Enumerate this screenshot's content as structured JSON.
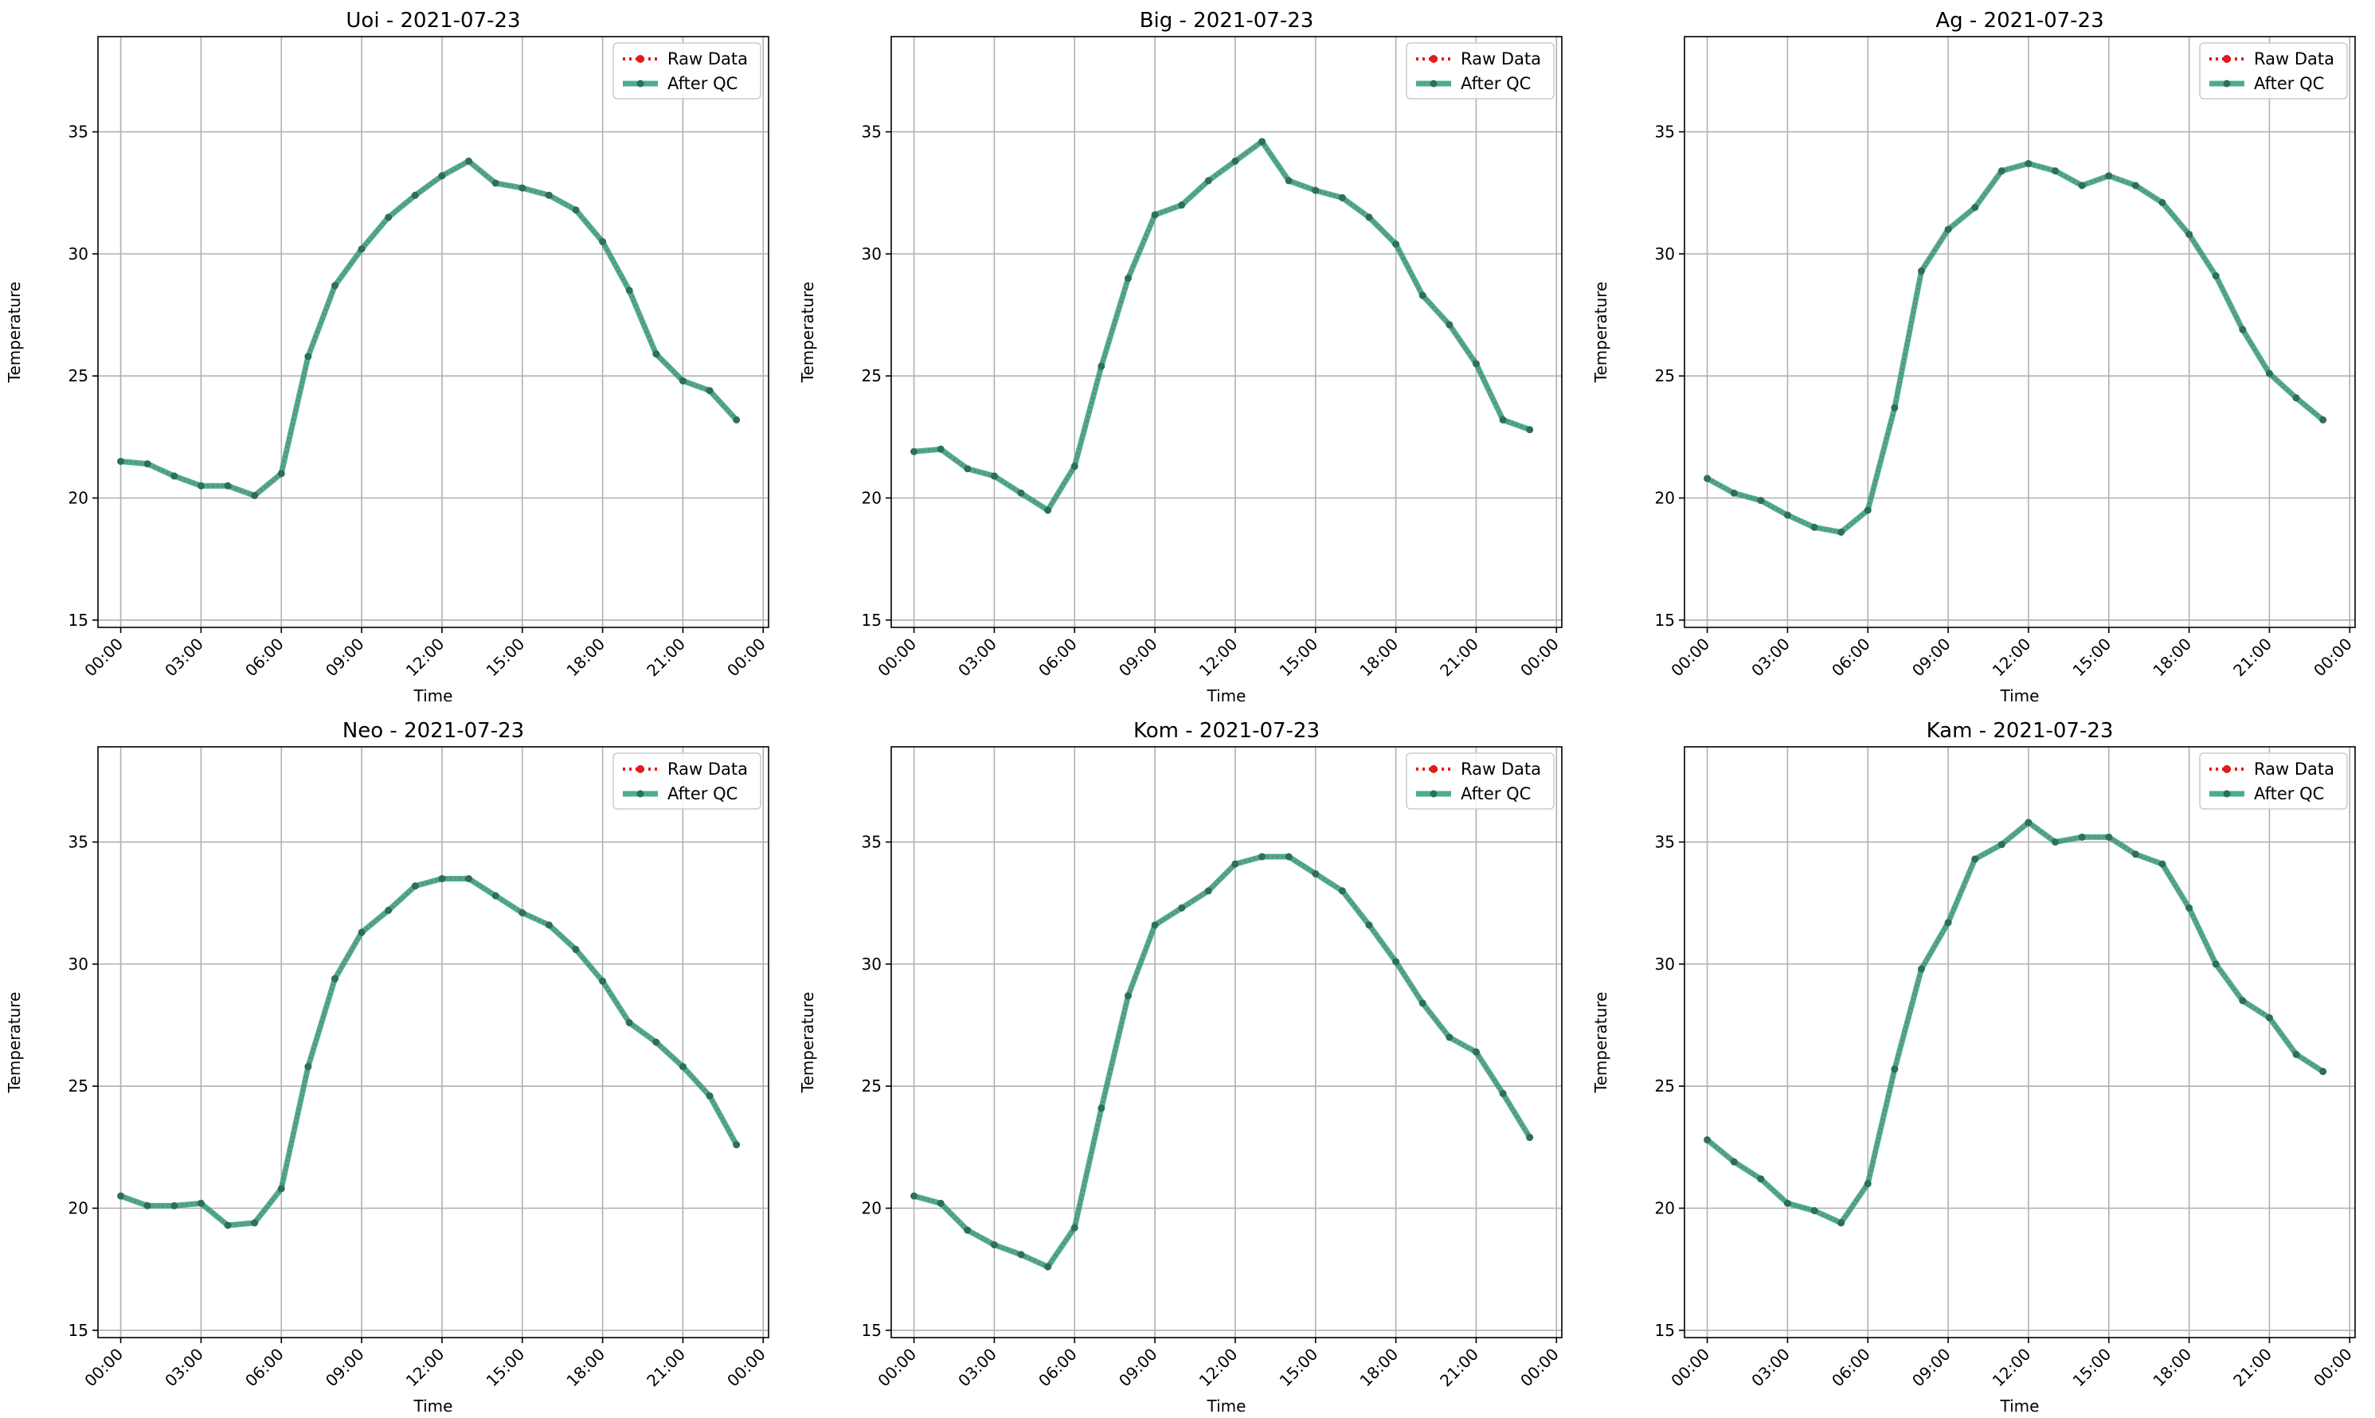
{
  "colors": {
    "raw": "#e41a1c",
    "qc": "#2a9d7f",
    "qc_marker": "#2d6e5c",
    "grid": "#b0b0b0",
    "axes": "#000000"
  },
  "chart_data": [
    {
      "type": "line",
      "title": "Uoi - 2021-07-23",
      "xlabel": "Time",
      "ylabel": "Temperature",
      "ylim": [
        14.7,
        38.9
      ],
      "xlim": [
        -0.85,
        24.2
      ],
      "x_unit": "hours",
      "x": [
        0,
        1,
        2,
        3,
        4,
        5,
        6,
        7,
        8,
        9,
        10,
        11,
        12,
        13,
        14,
        15,
        16,
        17,
        18,
        19,
        20,
        21,
        22,
        23
      ],
      "xtick_values": [
        0,
        3,
        6,
        9,
        12,
        15,
        18,
        21,
        24
      ],
      "xtick_labels": [
        "00:00",
        "03:00",
        "06:00",
        "09:00",
        "12:00",
        "15:00",
        "18:00",
        "21:00",
        "00:00"
      ],
      "ytick_values": [
        15,
        20,
        25,
        30,
        35
      ],
      "ytick_labels": [
        "15",
        "20",
        "25",
        "30",
        "35"
      ],
      "grid": true,
      "legend": "top-right",
      "series": [
        {
          "name": "Raw Data",
          "style": "dotted",
          "values": [
            21.5,
            21.4,
            20.9,
            20.5,
            20.5,
            20.1,
            21.0,
            25.8,
            28.7,
            30.2,
            31.5,
            32.4,
            33.2,
            33.8,
            32.9,
            32.7,
            32.4,
            31.8,
            30.5,
            28.5,
            25.9,
            24.8,
            24.4,
            23.2
          ]
        },
        {
          "name": "After QC",
          "style": "solid",
          "values": [
            21.5,
            21.4,
            20.9,
            20.5,
            20.5,
            20.1,
            21.0,
            25.8,
            28.7,
            30.2,
            31.5,
            32.4,
            33.2,
            33.8,
            32.9,
            32.7,
            32.4,
            31.8,
            30.5,
            28.5,
            25.9,
            24.8,
            24.4,
            23.2
          ]
        }
      ]
    },
    {
      "type": "line",
      "title": "Big - 2021-07-23",
      "xlabel": "Time",
      "ylabel": "Temperature",
      "ylim": [
        14.7,
        38.9
      ],
      "xlim": [
        -0.85,
        24.2
      ],
      "x_unit": "hours",
      "x": [
        0,
        1,
        2,
        3,
        4,
        5,
        6,
        7,
        8,
        9,
        10,
        11,
        12,
        13,
        14,
        15,
        16,
        17,
        18,
        19,
        20,
        21,
        22,
        23
      ],
      "xtick_values": [
        0,
        3,
        6,
        9,
        12,
        15,
        18,
        21,
        24
      ],
      "xtick_labels": [
        "00:00",
        "03:00",
        "06:00",
        "09:00",
        "12:00",
        "15:00",
        "18:00",
        "21:00",
        "00:00"
      ],
      "ytick_values": [
        15,
        20,
        25,
        30,
        35
      ],
      "ytick_labels": [
        "15",
        "20",
        "25",
        "30",
        "35"
      ],
      "grid": true,
      "legend": "top-right",
      "series": [
        {
          "name": "Raw Data",
          "style": "dotted",
          "values": [
            21.9,
            22.0,
            21.2,
            20.9,
            20.2,
            19.5,
            21.3,
            25.4,
            29.0,
            31.6,
            32.0,
            33.0,
            33.8,
            34.6,
            33.0,
            32.6,
            32.3,
            31.5,
            30.4,
            28.3,
            27.1,
            25.5,
            23.2,
            22.8
          ]
        },
        {
          "name": "After QC",
          "style": "solid",
          "values": [
            21.9,
            22.0,
            21.2,
            20.9,
            20.2,
            19.5,
            21.3,
            25.4,
            29.0,
            31.6,
            32.0,
            33.0,
            33.8,
            34.6,
            33.0,
            32.6,
            32.3,
            31.5,
            30.4,
            28.3,
            27.1,
            25.5,
            23.2,
            22.8
          ]
        }
      ]
    },
    {
      "type": "line",
      "title": "Ag - 2021-07-23",
      "xlabel": "Time",
      "ylabel": "Temperature",
      "ylim": [
        14.7,
        38.9
      ],
      "xlim": [
        -0.85,
        24.2
      ],
      "x_unit": "hours",
      "x": [
        0,
        1,
        2,
        3,
        4,
        5,
        6,
        7,
        8,
        9,
        10,
        11,
        12,
        13,
        14,
        15,
        16,
        17,
        18,
        19,
        20,
        21,
        22,
        23
      ],
      "xtick_values": [
        0,
        3,
        6,
        9,
        12,
        15,
        18,
        21,
        24
      ],
      "xtick_labels": [
        "00:00",
        "03:00",
        "06:00",
        "09:00",
        "12:00",
        "15:00",
        "18:00",
        "21:00",
        "00:00"
      ],
      "ytick_values": [
        15,
        20,
        25,
        30,
        35
      ],
      "ytick_labels": [
        "15",
        "20",
        "25",
        "30",
        "35"
      ],
      "grid": true,
      "legend": "top-right",
      "series": [
        {
          "name": "Raw Data",
          "style": "dotted",
          "values": [
            20.8,
            20.2,
            19.9,
            19.3,
            18.8,
            18.6,
            19.5,
            23.7,
            29.3,
            31.0,
            31.9,
            33.4,
            33.7,
            33.4,
            32.8,
            33.2,
            32.8,
            32.1,
            30.8,
            29.1,
            26.9,
            25.1,
            24.1,
            23.2
          ]
        },
        {
          "name": "After QC",
          "style": "solid",
          "values": [
            20.8,
            20.2,
            19.9,
            19.3,
            18.8,
            18.6,
            19.5,
            23.7,
            29.3,
            31.0,
            31.9,
            33.4,
            33.7,
            33.4,
            32.8,
            33.2,
            32.8,
            32.1,
            30.8,
            29.1,
            26.9,
            25.1,
            24.1,
            23.2
          ]
        }
      ]
    },
    {
      "type": "line",
      "title": "Neo - 2021-07-23",
      "xlabel": "Time",
      "ylabel": "Temperature",
      "ylim": [
        14.7,
        38.9
      ],
      "xlim": [
        -0.85,
        24.2
      ],
      "x_unit": "hours",
      "x": [
        0,
        1,
        2,
        3,
        4,
        5,
        6,
        7,
        8,
        9,
        10,
        11,
        12,
        13,
        14,
        15,
        16,
        17,
        18,
        19,
        20,
        21,
        22,
        23
      ],
      "xtick_values": [
        0,
        3,
        6,
        9,
        12,
        15,
        18,
        21,
        24
      ],
      "xtick_labels": [
        "00:00",
        "03:00",
        "06:00",
        "09:00",
        "12:00",
        "15:00",
        "18:00",
        "21:00",
        "00:00"
      ],
      "ytick_values": [
        15,
        20,
        25,
        30,
        35
      ],
      "ytick_labels": [
        "15",
        "20",
        "25",
        "30",
        "35"
      ],
      "grid": true,
      "legend": "top-right",
      "series": [
        {
          "name": "Raw Data",
          "style": "dotted",
          "values": [
            20.5,
            20.1,
            20.1,
            20.2,
            19.3,
            19.4,
            20.8,
            25.8,
            29.4,
            31.3,
            32.2,
            33.2,
            33.5,
            33.5,
            32.8,
            32.1,
            31.6,
            30.6,
            29.3,
            27.6,
            26.8,
            25.8,
            24.6,
            22.6
          ]
        },
        {
          "name": "After QC",
          "style": "solid",
          "values": [
            20.5,
            20.1,
            20.1,
            20.2,
            19.3,
            19.4,
            20.8,
            25.8,
            29.4,
            31.3,
            32.2,
            33.2,
            33.5,
            33.5,
            32.8,
            32.1,
            31.6,
            30.6,
            29.3,
            27.6,
            26.8,
            25.8,
            24.6,
            22.6
          ]
        }
      ]
    },
    {
      "type": "line",
      "title": "Kom - 2021-07-23",
      "xlabel": "Time",
      "ylabel": "Temperature",
      "ylim": [
        14.7,
        38.9
      ],
      "xlim": [
        -0.85,
        24.2
      ],
      "x_unit": "hours",
      "x": [
        0,
        1,
        2,
        3,
        4,
        5,
        6,
        7,
        8,
        9,
        10,
        11,
        12,
        13,
        14,
        15,
        16,
        17,
        18,
        19,
        20,
        21,
        22,
        23
      ],
      "xtick_values": [
        0,
        3,
        6,
        9,
        12,
        15,
        18,
        21,
        24
      ],
      "xtick_labels": [
        "00:00",
        "03:00",
        "06:00",
        "09:00",
        "12:00",
        "15:00",
        "18:00",
        "21:00",
        "00:00"
      ],
      "ytick_values": [
        15,
        20,
        25,
        30,
        35
      ],
      "ytick_labels": [
        "15",
        "20",
        "25",
        "30",
        "35"
      ],
      "grid": true,
      "legend": "top-right",
      "series": [
        {
          "name": "Raw Data",
          "style": "dotted",
          "values": [
            20.5,
            20.2,
            19.1,
            18.5,
            18.1,
            17.6,
            19.2,
            24.1,
            28.7,
            31.6,
            32.3,
            33.0,
            34.1,
            34.4,
            34.4,
            33.7,
            33.0,
            31.6,
            30.1,
            28.4,
            27.0,
            26.4,
            24.7,
            22.9
          ]
        },
        {
          "name": "After QC",
          "style": "solid",
          "values": [
            20.5,
            20.2,
            19.1,
            18.5,
            18.1,
            17.6,
            19.2,
            24.1,
            28.7,
            31.6,
            32.3,
            33.0,
            34.1,
            34.4,
            34.4,
            33.7,
            33.0,
            31.6,
            30.1,
            28.4,
            27.0,
            26.4,
            24.7,
            22.9
          ]
        }
      ]
    },
    {
      "type": "line",
      "title": "Kam - 2021-07-23",
      "xlabel": "Time",
      "ylabel": "Temperature",
      "ylim": [
        14.7,
        38.9
      ],
      "xlim": [
        -0.85,
        24.2
      ],
      "x_unit": "hours",
      "x": [
        0,
        1,
        2,
        3,
        4,
        5,
        6,
        7,
        8,
        9,
        10,
        11,
        12,
        13,
        14,
        15,
        16,
        17,
        18,
        19,
        20,
        21,
        22,
        23
      ],
      "xtick_values": [
        0,
        3,
        6,
        9,
        12,
        15,
        18,
        21,
        24
      ],
      "xtick_labels": [
        "00:00",
        "03:00",
        "06:00",
        "09:00",
        "12:00",
        "15:00",
        "18:00",
        "21:00",
        "00:00"
      ],
      "ytick_values": [
        15,
        20,
        25,
        30,
        35
      ],
      "ytick_labels": [
        "15",
        "20",
        "25",
        "30",
        "35"
      ],
      "grid": true,
      "legend": "top-right",
      "series": [
        {
          "name": "Raw Data",
          "style": "dotted",
          "values": [
            22.8,
            21.9,
            21.2,
            20.2,
            19.9,
            19.4,
            21.0,
            25.7,
            29.8,
            31.7,
            34.3,
            34.9,
            35.8,
            35.0,
            35.2,
            35.2,
            34.5,
            34.1,
            32.3,
            30.0,
            28.5,
            27.8,
            26.3,
            25.6
          ]
        },
        {
          "name": "After QC",
          "style": "solid",
          "values": [
            22.8,
            21.9,
            21.2,
            20.2,
            19.9,
            19.4,
            21.0,
            25.7,
            29.8,
            31.7,
            34.3,
            34.9,
            35.8,
            35.0,
            35.2,
            35.2,
            34.5,
            34.1,
            32.3,
            30.0,
            28.5,
            27.8,
            26.3,
            25.6
          ]
        }
      ]
    }
  ]
}
